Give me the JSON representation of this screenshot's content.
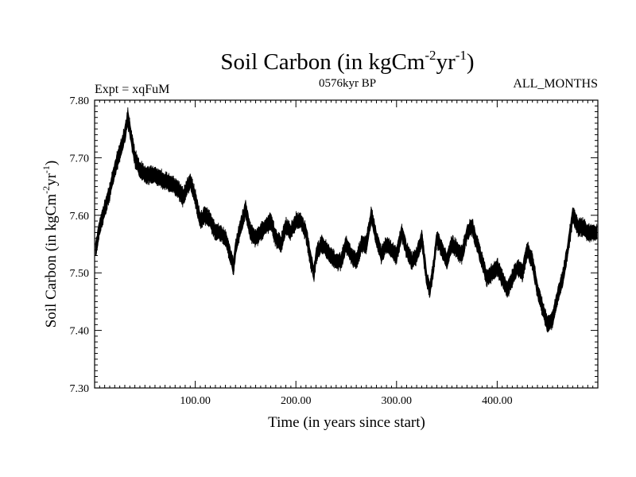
{
  "chart_data": {
    "type": "line",
    "title": "Soil Carbon (in kgCm",
    "title_sup1": "-2",
    "title_mid": "yr",
    "title_sup2": "-1",
    "title_end": ")",
    "left_label": "Expt = xqFuM",
    "center_label": "0576kyr BP",
    "right_label": "ALL_MONTHS",
    "xlabel": "Time (in years since start)",
    "ylabel": "Soil Carbon (in kgCm",
    "ylabel_sup1": "-2",
    "ylabel_mid": "yr",
    "ylabel_sup2": "-1",
    "ylabel_end": ")",
    "xlim": [
      0,
      500
    ],
    "ylim": [
      7.3,
      7.8
    ],
    "x_ticks": [
      100,
      200,
      300,
      400
    ],
    "x_tick_labels": [
      "100.00",
      "200.00",
      "300.00",
      "400.00"
    ],
    "y_ticks": [
      7.3,
      7.4,
      7.5,
      7.6,
      7.7,
      7.8
    ],
    "y_tick_labels": [
      "7.30",
      "7.40",
      "7.50",
      "7.60",
      "7.70",
      "7.80"
    ],
    "band_halfwidth": 0.012,
    "series": [
      {
        "name": "Soil Carbon",
        "color": "#000000",
        "x": [
          1,
          5,
          10,
          15,
          20,
          25,
          30,
          33,
          36,
          40,
          45,
          50,
          60,
          70,
          80,
          85,
          88,
          90,
          95,
          100,
          105,
          110,
          115,
          120,
          125,
          130,
          135,
          138,
          140,
          145,
          150,
          155,
          160,
          165,
          170,
          175,
          180,
          185,
          190,
          195,
          200,
          205,
          210,
          215,
          218,
          220,
          225,
          230,
          235,
          240,
          245,
          250,
          255,
          260,
          265,
          270,
          275,
          280,
          285,
          290,
          295,
          300,
          305,
          310,
          315,
          320,
          325,
          330,
          333,
          336,
          340,
          345,
          350,
          355,
          360,
          365,
          370,
          375,
          380,
          385,
          390,
          395,
          400,
          405,
          410,
          415,
          420,
          425,
          430,
          435,
          440,
          445,
          450,
          455,
          460,
          465,
          470,
          475,
          480,
          485,
          490,
          495,
          499
        ],
        "y": [
          7.54,
          7.58,
          7.61,
          7.64,
          7.68,
          7.71,
          7.74,
          7.77,
          7.74,
          7.7,
          7.68,
          7.67,
          7.67,
          7.66,
          7.65,
          7.64,
          7.63,
          7.64,
          7.66,
          7.63,
          7.59,
          7.6,
          7.59,
          7.57,
          7.57,
          7.56,
          7.53,
          7.51,
          7.54,
          7.58,
          7.61,
          7.57,
          7.56,
          7.57,
          7.58,
          7.59,
          7.56,
          7.55,
          7.58,
          7.57,
          7.59,
          7.59,
          7.57,
          7.52,
          7.5,
          7.53,
          7.55,
          7.54,
          7.53,
          7.52,
          7.52,
          7.55,
          7.53,
          7.52,
          7.55,
          7.55,
          7.6,
          7.56,
          7.53,
          7.55,
          7.54,
          7.53,
          7.57,
          7.54,
          7.52,
          7.53,
          7.56,
          7.49,
          7.47,
          7.5,
          7.56,
          7.54,
          7.52,
          7.55,
          7.54,
          7.53,
          7.57,
          7.58,
          7.55,
          7.52,
          7.49,
          7.5,
          7.51,
          7.49,
          7.47,
          7.49,
          7.51,
          7.5,
          7.54,
          7.52,
          7.47,
          7.44,
          7.41,
          7.42,
          7.46,
          7.49,
          7.54,
          7.6,
          7.58,
          7.58,
          7.57,
          7.57,
          7.57
        ]
      }
    ]
  }
}
